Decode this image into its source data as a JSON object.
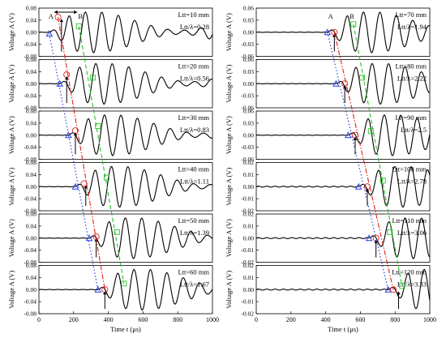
{
  "colors": {
    "signal": "#000000",
    "marker_a": "#1f35e0",
    "marker_b": "#25c225",
    "marker_r": "#e02020"
  },
  "axis_labels": {
    "y": "Voltage A (V)",
    "x_left": "Time t (μs)",
    "x_right": "Time t (μs)",
    "annot_a": "A",
    "annot_b": "B"
  },
  "chart_data": [
    {
      "type": "line",
      "column": "left",
      "panel": 1,
      "label_length": "Ltt=10 mm",
      "label_ratio": "Ltt/λ=0.28",
      "ylim": [
        -0.08,
        0.08
      ],
      "yticks": [
        "0.08",
        "0.04",
        "0.00",
        "-0.04",
        "-0.08"
      ],
      "xlim": [
        0,
        1000
      ],
      "markers": {
        "A": [
          60,
          -0.005
        ],
        "R": [
          110,
          0.05
        ],
        "B": [
          230,
          0.02
        ],
        "arrow": 130
      }
    },
    {
      "type": "line",
      "column": "left",
      "panel": 2,
      "label_length": "Ltt=20 mm",
      "label_ratio": "Ltt/λ=0.56",
      "ylim": [
        -0.08,
        0.08
      ],
      "yticks": [
        "0.08",
        "0.04",
        "0.00",
        "-0.04",
        "-0.08"
      ],
      "xlim": [
        0,
        1000
      ],
      "markers": {
        "A": [
          120,
          0.0
        ],
        "R": [
          160,
          0.03
        ],
        "B": [
          310,
          0.02
        ],
        "arrow": 160
      }
    },
    {
      "type": "line",
      "column": "left",
      "panel": 3,
      "label_length": "Ltt=30 mm",
      "label_ratio": "Ltt/λ=0.83",
      "ylim": [
        -0.08,
        0.08
      ],
      "yticks": [
        "0.08",
        "0.04",
        "0.00",
        "-0.04",
        "-0.08"
      ],
      "xlim": [
        0,
        1000
      ],
      "markers": {
        "A": [
          170,
          0.0
        ],
        "R": [
          210,
          0.015
        ],
        "B": [
          340,
          0.03
        ],
        "arrow": 210
      }
    },
    {
      "type": "line",
      "column": "left",
      "panel": 4,
      "label_length": "Ltt=40 mm",
      "label_ratio": "Ltt/λ=1.11",
      "ylim": [
        -0.08,
        0.08
      ],
      "yticks": [
        "0.08",
        "0.04",
        "0.00",
        "-0.04",
        "-0.08"
      ],
      "xlim": [
        0,
        1000
      ],
      "markers": {
        "A": [
          210,
          0.0
        ],
        "R": [
          260,
          0.01
        ],
        "B": [
          390,
          0.03
        ],
        "arrow": 270
      }
    },
    {
      "type": "line",
      "column": "left",
      "panel": 5,
      "label_length": "Ltt=50 mm",
      "label_ratio": "Ltt/λ=1.39",
      "ylim": [
        -0.08,
        0.08
      ],
      "yticks": [
        "0.08",
        "0.04",
        "0.00",
        "-0.04",
        "-0.08"
      ],
      "xlim": [
        0,
        1000
      ],
      "markers": {
        "A": [
          290,
          0.0
        ],
        "R": [
          330,
          0.005
        ],
        "B": [
          450,
          0.02
        ],
        "arrow": 330
      }
    },
    {
      "type": "line",
      "column": "left",
      "panel": 6,
      "label_length": "Ltt=60 mm",
      "label_ratio": "Ltt/λ=1.67",
      "ylim": [
        -0.08,
        0.08
      ],
      "yticks": [
        "0.08",
        "0.04",
        "0.00",
        "-0.04",
        "-0.08"
      ],
      "xlim": [
        0,
        1000
      ],
      "markers": {
        "A": [
          340,
          0.0
        ],
        "R": [
          380,
          0.0
        ],
        "B": [
          490,
          0.02
        ],
        "arrow": 380
      }
    },
    {
      "type": "line",
      "column": "right",
      "panel": 1,
      "label_length": "Ltt=70 mm",
      "label_ratio": "Ltt/λ=1.94",
      "ylim": [
        -0.06,
        0.06
      ],
      "yticks": [
        "0.06",
        "0.03",
        "0.00",
        "-0.03",
        "-0.06"
      ],
      "xlim": [
        0,
        1000
      ],
      "markers": {
        "A": [
          410,
          0.0
        ],
        "R": [
          450,
          0.0
        ],
        "B": [
          560,
          0.02
        ],
        "arrow": 450
      }
    },
    {
      "type": "line",
      "column": "right",
      "panel": 2,
      "label_length": "Ltt=80 mm",
      "label_ratio": "Ltt/λ=2.22",
      "ylim": [
        -0.06,
        0.06
      ],
      "yticks": [
        "0.06",
        "0.03",
        "0.00",
        "-0.03",
        "-0.06"
      ],
      "xlim": [
        0,
        1000
      ],
      "markers": {
        "A": [
          460,
          0.0
        ],
        "R": [
          510,
          0.0
        ],
        "B": [
          610,
          0.015
        ],
        "arrow": 510
      }
    },
    {
      "type": "line",
      "column": "right",
      "panel": 3,
      "label_length": "Ltt=90 mm",
      "label_ratio": "Ltt/λ=2.5",
      "ylim": [
        -0.06,
        0.06
      ],
      "yticks": [
        "0.06",
        "0.03",
        "0.00",
        "-0.03",
        "-0.06"
      ],
      "xlim": [
        0,
        1000
      ],
      "markers": {
        "A": [
          530,
          0.0
        ],
        "R": [
          570,
          0.0
        ],
        "B": [
          660,
          0.01
        ],
        "arrow": 570
      }
    },
    {
      "type": "line",
      "column": "right",
      "panel": 4,
      "label_length": "Ltt=100 mm",
      "label_ratio": "Ltt/λ=2.78",
      "ylim": [
        -0.02,
        0.02
      ],
      "yticks": [
        "0.02",
        "0.01",
        "0.00",
        "-0.01",
        "-0.02"
      ],
      "xlim": [
        0,
        1000
      ],
      "markers": {
        "A": [
          590,
          0.0
        ],
        "R": [
          640,
          0.0
        ],
        "B": [
          730,
          0.005
        ],
        "arrow": 640
      }
    },
    {
      "type": "line",
      "column": "right",
      "panel": 5,
      "label_length": "Ltt=110 mm",
      "label_ratio": "Ltt/λ=3.06",
      "ylim": [
        -0.02,
        0.02
      ],
      "yticks": [
        "0.02",
        "0.01",
        "0.00",
        "-0.01",
        "-0.02"
      ],
      "xlim": [
        0,
        1000
      ],
      "markers": {
        "A": [
          650,
          0.0
        ],
        "R": [
          690,
          0.0
        ],
        "B": [
          770,
          0.005
        ],
        "arrow": 690
      }
    },
    {
      "type": "line",
      "column": "right",
      "panel": 6,
      "label_length": "Ltt=120 mm",
      "label_ratio": "Ltt/λ=3.33",
      "ylim": [
        -0.02,
        0.02
      ],
      "yticks": [
        "0.02",
        "0.01",
        "0.00",
        "-0.01",
        "-0.02"
      ],
      "xlim": [
        0,
        1000
      ],
      "markers": {
        "A": [
          760,
          0.0
        ],
        "R": [
          790,
          0.0
        ],
        "B": [
          840,
          0.003
        ],
        "arrow": 820
      }
    }
  ],
  "xticks": [
    "0",
    "200",
    "400",
    "600",
    "800",
    "1000"
  ]
}
